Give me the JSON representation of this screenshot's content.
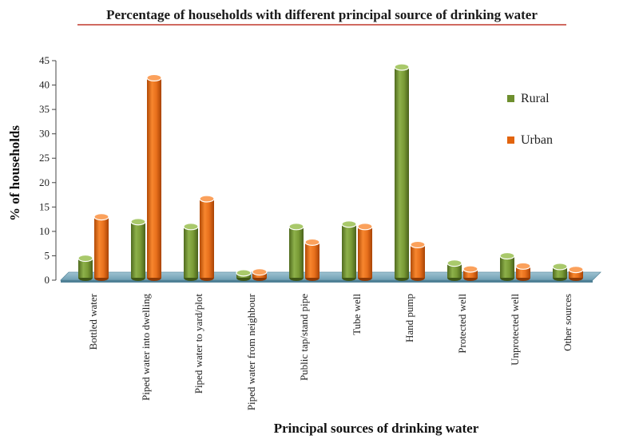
{
  "chart_data": {
    "type": "bar",
    "title": "Percentage of households with different principal source of drinking water",
    "xlabel": "Principal sources of drinking water",
    "ylabel": "% of households",
    "ylim": [
      0,
      45
    ],
    "yticks": [
      0,
      5,
      10,
      15,
      20,
      25,
      30,
      35,
      40,
      45
    ],
    "categories": [
      "Bottled water",
      "Piped water into dwelling",
      "Piped water to yard/plot",
      "Piped water from neighbour",
      "Public tap/stand pipe",
      "Tube well",
      "Hand pump",
      "Protected well",
      "Unprotected well",
      "Other sources"
    ],
    "series": [
      {
        "name": "Rural",
        "color": "#6e8f2e",
        "values": [
          4.0,
          11.5,
          10.5,
          1.0,
          10.5,
          11.0,
          43.2,
          3.0,
          4.5,
          2.3
        ]
      },
      {
        "name": "Urban",
        "color": "#e2640e",
        "values": [
          12.5,
          41.0,
          16.2,
          1.2,
          7.3,
          10.5,
          6.8,
          1.8,
          2.4,
          1.7
        ]
      }
    ],
    "legend_position": "right",
    "grid": false
  }
}
